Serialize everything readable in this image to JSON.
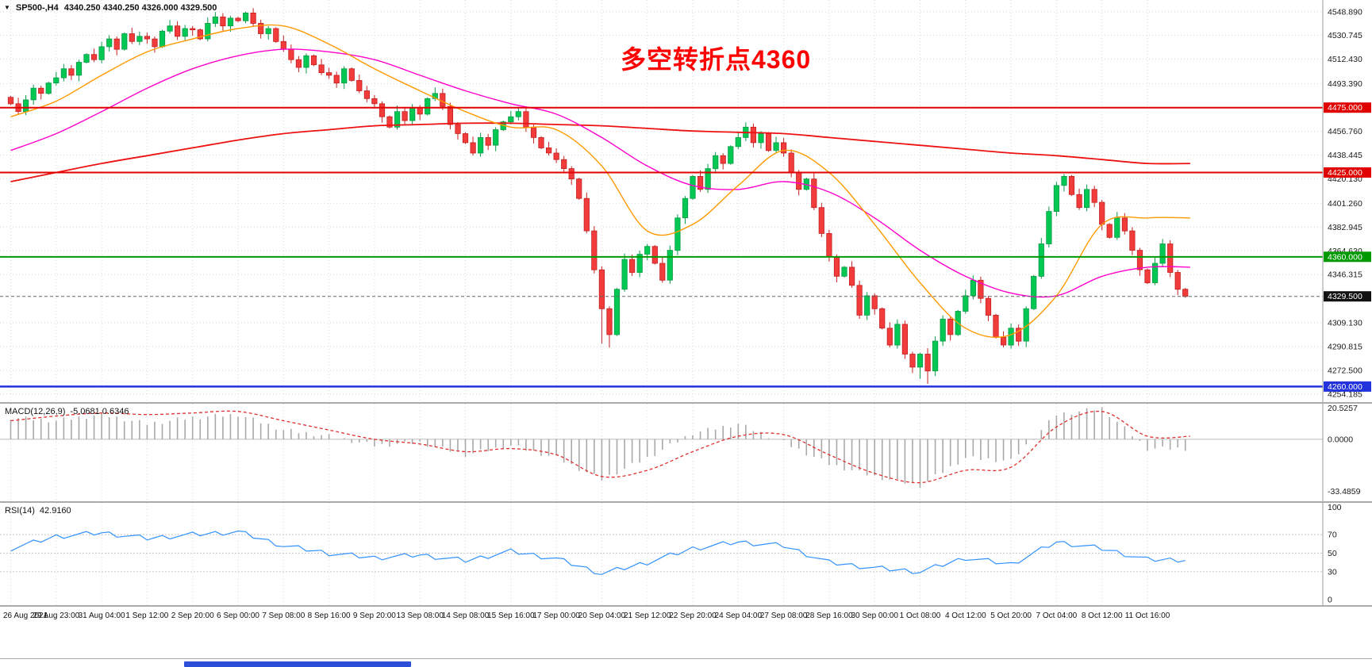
{
  "header": {
    "marker": "▼",
    "symbol": "SP500-,H4",
    "ohlc": "4340.250 4340.250 4326.000 4329.500"
  },
  "annotation": {
    "text": "多空转折点4360",
    "color": "#ff0000"
  },
  "colors": {
    "background": "#ffffff",
    "grid": "#d9d9d9",
    "bull_fill": "#00c853",
    "bull_stroke": "#089b46",
    "bear_fill": "#f23b3b",
    "bear_stroke": "#c42020",
    "ma_fast": "#ff9900",
    "ma_mid": "#ff00cc",
    "ma_slow": "#ee1111",
    "macd_hist": "#a8a8a8",
    "macd_signal": "#e03030",
    "rsi_line": "#3392ff",
    "panel_border": "#ababab"
  },
  "chart_data": {
    "type": "candlestick",
    "title": "SP500- H4 chart with MACD and RSI",
    "x_labels": [
      "26 Aug 2021",
      "29 Aug 23:00",
      "31 Aug 04:00",
      "1 Sep 12:00",
      "2 Sep 20:00",
      "6 Sep 00:00",
      "7 Sep 08:00",
      "8 Sep 16:00",
      "9 Sep 20:00",
      "13 Sep 08:00",
      "14 Sep 08:00",
      "15 Sep 16:00",
      "17 Sep 00:00",
      "20 Sep 04:00",
      "21 Sep 12:00",
      "22 Sep 20:00",
      "24 Sep 04:00",
      "27 Sep 08:00",
      "28 Sep 16:00",
      "30 Sep 00:00",
      "1 Oct 08:00",
      "4 Oct 12:00",
      "5 Oct 20:00",
      "7 Oct 04:00",
      "8 Oct 12:00",
      "11 Oct 16:00"
    ],
    "main": {
      "price_min": 4248,
      "price_max": 4558,
      "first_open": 4483,
      "closes": [
        4478,
        4472,
        4481,
        4490,
        4486,
        4494,
        4498,
        4505,
        4500,
        4510,
        4516,
        4512,
        4522,
        4528,
        4520,
        4532,
        4526,
        4530,
        4528,
        4522,
        4534,
        4538,
        4530,
        4536,
        4535,
        4528,
        4540,
        4545,
        4538,
        4544,
        4542,
        4548,
        4540,
        4532,
        4536,
        4526,
        4520,
        4512,
        4506,
        4515,
        4508,
        4502,
        4500,
        4494,
        4505,
        4496,
        4488,
        4482,
        4478,
        4468,
        4460,
        4472,
        4465,
        4475,
        4470,
        4482,
        4486,
        4476,
        4462,
        4455,
        4448,
        4440,
        4452,
        4446,
        4458,
        4464,
        4468,
        4472,
        4460,
        4452,
        4444,
        4440,
        4435,
        4428,
        4420,
        4405,
        4380,
        4350,
        4320,
        4300,
        4335,
        4358,
        4348,
        4362,
        4368,
        4355,
        4342,
        4365,
        4390,
        4405,
        4422,
        4412,
        4428,
        4438,
        4432,
        4445,
        4452,
        4460,
        4448,
        4455,
        4442,
        4448,
        4440,
        4425,
        4412,
        4420,
        4398,
        4378,
        4360,
        4345,
        4352,
        4338,
        4315,
        4330,
        4320,
        4305,
        4292,
        4308,
        4285,
        4275,
        4285,
        4272,
        4295,
        4312,
        4300,
        4318,
        4330,
        4342,
        4328,
        4315,
        4298,
        4292,
        4305,
        4295,
        4320,
        4345,
        4370,
        4395,
        4415,
        4422,
        4408,
        4398,
        4412,
        4402,
        4385,
        4375,
        4390,
        4380,
        4365,
        4350,
        4340,
        4355,
        4370,
        4348,
        4335,
        4329.5
      ],
      "high_overrides": {
        "31": 4549
      },
      "low_overrides": {
        "78": 4293,
        "79": 4290,
        "120": 4266,
        "121": 4262,
        "122": 4268
      },
      "ma_orange": [
        4468,
        4480,
        4500,
        4518,
        4528,
        4536,
        4538,
        4524,
        4505,
        4488,
        4472,
        4460,
        4458,
        4430,
        4380,
        4385,
        4415,
        4442,
        4425,
        4385,
        4340,
        4305,
        4300,
        4330,
        4385,
        4390
      ],
      "ma_magenta": [
        4442,
        4455,
        4472,
        4490,
        4505,
        4515,
        4520,
        4518,
        4512,
        4500,
        4488,
        4478,
        4470,
        4452,
        4430,
        4415,
        4412,
        4418,
        4410,
        4390,
        4365,
        4345,
        4332,
        4330,
        4345,
        4352
      ],
      "ma_red": [
        4418,
        4425,
        4432,
        4438,
        4444,
        4450,
        4455,
        4458,
        4461,
        4462,
        4463,
        4463,
        4462,
        4461,
        4459,
        4457,
        4456,
        4455,
        4452,
        4449,
        4446,
        4443,
        4440,
        4438,
        4435,
        4432
      ],
      "axis_ticks": [
        "4548.890",
        "4530.745",
        "4512.430",
        "4493.390",
        "4456.760",
        "4438.445",
        "4420.130",
        "4401.260",
        "4382.945",
        "4364.630",
        "4346.315",
        "4309.130",
        "4290.815",
        "4272.500",
        "4254.185"
      ],
      "hlines": [
        {
          "price": 4475.0,
          "label": "4475.000",
          "color": "#e00000",
          "width": 2
        },
        {
          "price": 4425.0,
          "label": "4425.000",
          "color": "#e00000",
          "width": 2
        },
        {
          "price": 4360.0,
          "label": "4360.000",
          "color": "#009900",
          "width": 2
        },
        {
          "price": 4260.0,
          "label": "4260.000",
          "color": "#2233dd",
          "width": 2.5
        }
      ],
      "current_price": {
        "value": 4329.5,
        "label": "4329.500",
        "line_color": "#666666",
        "badge_color": "#111111"
      }
    },
    "macd": {
      "label": "MACD(12,26,9)",
      "values_label": "-5.0681 0.6346",
      "axis": [
        "20.5257",
        "0.0000",
        "-33.4859"
      ],
      "range": [
        -40,
        23
      ],
      "signal_line": [
        12,
        15,
        17,
        16,
        17,
        18,
        12,
        6,
        0,
        -3,
        -8,
        -6,
        -10,
        -24,
        -20,
        -8,
        2,
        3,
        -10,
        -22,
        -28,
        -20,
        -18,
        8,
        18,
        2
      ],
      "histogram": [
        14,
        12,
        16,
        10,
        14,
        16,
        6,
        2,
        -4,
        -2,
        -10,
        -4,
        -12,
        -26,
        -12,
        4,
        10,
        -2,
        -16,
        -24,
        -30,
        -12,
        -14,
        16,
        20,
        -6
      ]
    },
    "rsi": {
      "label": "RSI(14)",
      "value_label": "42.9160",
      "axis": [
        "100",
        "70",
        "50",
        "30",
        "0"
      ],
      "levels": [
        70,
        50,
        30
      ],
      "line": [
        55,
        68,
        72,
        66,
        70,
        73,
        58,
        50,
        45,
        48,
        42,
        52,
        44,
        28,
        40,
        55,
        62,
        58,
        40,
        34,
        30,
        45,
        38,
        62,
        55,
        43
      ]
    }
  }
}
